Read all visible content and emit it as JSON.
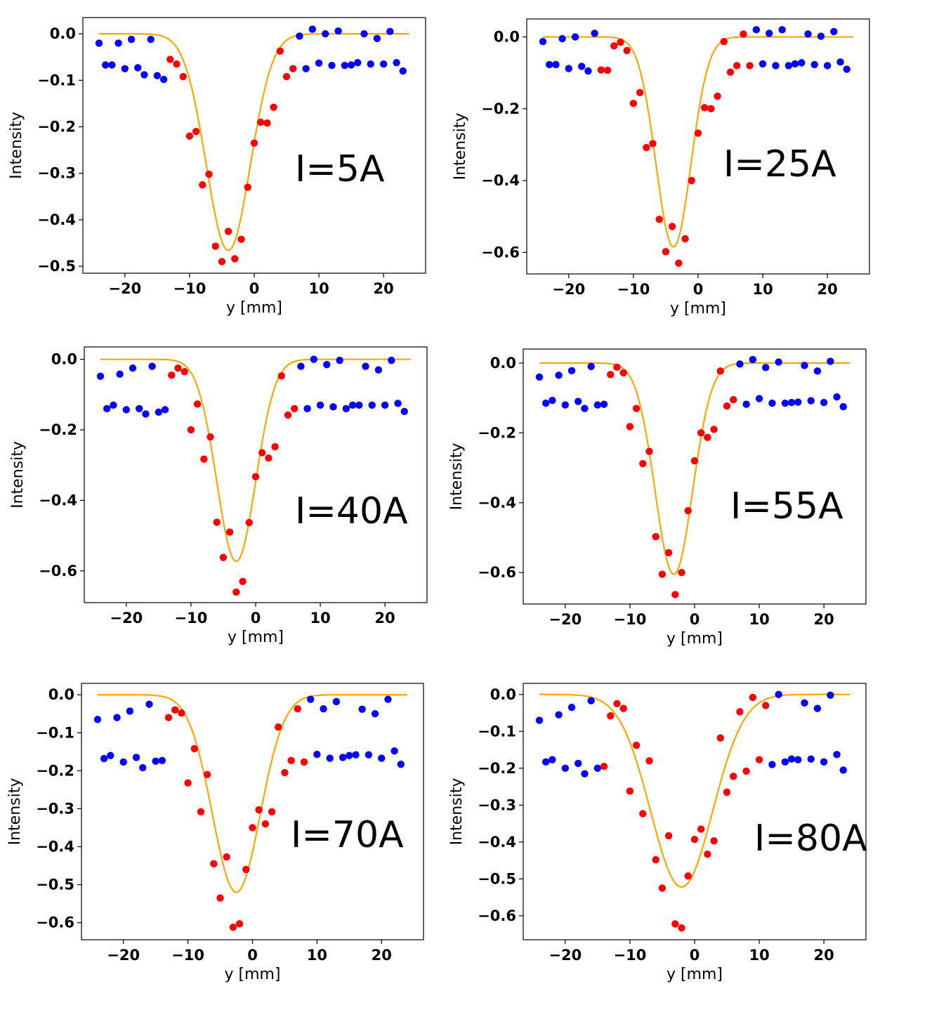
{
  "figure": {
    "fit_color": "#ffa500",
    "series_colors": {
      "outside": "#0000ff",
      "inside": "#ff0000"
    }
  },
  "chart_data": [
    {
      "type": "scatter",
      "annotation": "I=5A",
      "xlabel": "y [mm]",
      "ylabel": "Intensity",
      "xlim": [
        -26.5,
        26.5
      ],
      "ylim": [
        -0.515,
        0.035
      ],
      "xticks": [
        -20,
        -10,
        0,
        10,
        20
      ],
      "xtick_labels": [
        "−20",
        "−10",
        "0",
        "10",
        "20"
      ],
      "yticks": [
        0.0,
        -0.1,
        -0.2,
        -0.3,
        -0.4,
        -0.5
      ],
      "ytick_labels": [
        "0.0",
        "−0.1",
        "−0.2",
        "−0.3",
        "−0.4",
        "−0.5"
      ],
      "fit": {
        "amplitude": -0.466,
        "center": -4.0,
        "sigma": 3.4
      },
      "series": [
        {
          "color": "blue",
          "x": [
            -24,
            -23,
            -22,
            -21,
            -20,
            -19,
            -18,
            -17,
            -16,
            -15,
            -14
          ],
          "y": [
            -0.02,
            -0.067,
            -0.067,
            -0.02,
            -0.075,
            -0.012,
            -0.073,
            -0.088,
            -0.012,
            -0.09,
            -0.098
          ]
        },
        {
          "color": "blue",
          "x": [
            7,
            8,
            9,
            10,
            11,
            12,
            13,
            14,
            15,
            16,
            17,
            18,
            19,
            20,
            21,
            22,
            23
          ],
          "y": [
            -0.005,
            -0.075,
            0.01,
            -0.063,
            0.0,
            -0.068,
            0.006,
            -0.068,
            -0.067,
            -0.062,
            0.0,
            -0.065,
            -0.01,
            -0.065,
            0.005,
            -0.062,
            -0.08
          ]
        },
        {
          "color": "red",
          "x": [
            -13,
            -12,
            -11,
            -10,
            -9,
            -8,
            -7,
            -6,
            -5,
            -4,
            -3,
            -2,
            -1,
            0,
            1,
            2,
            3,
            4,
            5,
            6
          ],
          "y": [
            -0.055,
            -0.065,
            -0.092,
            -0.22,
            -0.21,
            -0.325,
            -0.302,
            -0.457,
            -0.49,
            -0.425,
            -0.484,
            -0.442,
            -0.33,
            -0.235,
            -0.19,
            -0.192,
            -0.158,
            -0.037,
            -0.092,
            -0.075
          ]
        }
      ]
    },
    {
      "type": "scatter",
      "annotation": "I=25A",
      "xlabel": "y [mm]",
      "ylabel": "Intensity",
      "xlim": [
        -26.5,
        26.5
      ],
      "ylim": [
        -0.66,
        0.05
      ],
      "xticks": [
        -20,
        -10,
        0,
        10,
        20
      ],
      "xtick_labels": [
        "−20",
        "−10",
        "0",
        "10",
        "20"
      ],
      "yticks": [
        0.0,
        -0.2,
        -0.4,
        -0.6
      ],
      "ytick_labels": [
        "0.0",
        "−0.2",
        "−0.4",
        "−0.6"
      ],
      "fit": {
        "amplitude": -0.585,
        "center": -3.8,
        "sigma": 2.7
      },
      "series": [
        {
          "color": "blue",
          "x": [
            -24,
            -23,
            -22,
            -21,
            -20,
            -19,
            -18,
            -17,
            -16
          ],
          "y": [
            -0.013,
            -0.077,
            -0.077,
            -0.005,
            -0.088,
            0.0,
            -0.082,
            -0.095,
            0.01
          ]
        },
        {
          "color": "blue",
          "x": [
            9,
            10,
            11,
            12,
            13,
            14,
            15,
            16,
            17,
            18,
            19,
            20,
            21,
            22,
            23
          ],
          "y": [
            0.02,
            -0.075,
            0.01,
            -0.08,
            0.02,
            -0.08,
            -0.075,
            -0.072,
            0.008,
            -0.077,
            0.002,
            -0.08,
            0.015,
            -0.07,
            -0.09
          ]
        },
        {
          "color": "red",
          "x": [
            -15,
            -14,
            -13,
            -12,
            -11,
            -10,
            -9,
            -8,
            -7,
            -6,
            -5,
            -4,
            -3,
            -2,
            -1,
            0,
            1,
            2,
            3,
            4,
            5,
            6,
            7,
            8
          ],
          "y": [
            -0.092,
            -0.093,
            -0.025,
            -0.015,
            -0.038,
            -0.185,
            -0.155,
            -0.308,
            -0.297,
            -0.508,
            -0.598,
            -0.528,
            -0.63,
            -0.562,
            -0.4,
            -0.268,
            -0.197,
            -0.2,
            -0.165,
            -0.013,
            -0.098,
            -0.08,
            0.008,
            -0.08
          ]
        }
      ]
    },
    {
      "type": "scatter",
      "annotation": "I=40A",
      "xlabel": "y [mm]",
      "ylabel": "Intensity",
      "xlim": [
        -26.5,
        26.5
      ],
      "ylim": [
        -0.69,
        0.035
      ],
      "xticks": [
        -20,
        -10,
        0,
        10,
        20
      ],
      "xtick_labels": [
        "−20",
        "−10",
        "0",
        "10",
        "20"
      ],
      "yticks": [
        0.0,
        -0.2,
        -0.4,
        -0.6
      ],
      "ytick_labels": [
        "0.0",
        "−0.2",
        "−0.4",
        "−0.6"
      ],
      "fit": {
        "amplitude": -0.573,
        "center": -3.0,
        "sigma": 3.0
      },
      "series": [
        {
          "color": "blue",
          "x": [
            -24,
            -23,
            -22,
            -21,
            -20,
            -19,
            -18,
            -17,
            -16,
            -15,
            -14
          ],
          "y": [
            -0.048,
            -0.14,
            -0.13,
            -0.042,
            -0.143,
            -0.025,
            -0.14,
            -0.155,
            -0.02,
            -0.15,
            -0.143
          ]
        },
        {
          "color": "blue",
          "x": [
            7,
            8,
            9,
            10,
            11,
            12,
            13,
            14,
            15,
            16,
            17,
            18,
            19,
            20,
            21,
            22,
            23
          ],
          "y": [
            -0.02,
            -0.14,
            0.0,
            -0.13,
            -0.015,
            -0.135,
            -0.003,
            -0.14,
            -0.13,
            -0.13,
            -0.02,
            -0.13,
            -0.03,
            -0.13,
            -0.003,
            -0.125,
            -0.148
          ]
        },
        {
          "color": "red",
          "x": [
            -13,
            -12,
            -11,
            -10,
            -9,
            -8,
            -7,
            -6,
            -5,
            -4,
            -3,
            -2,
            -1,
            0,
            1,
            2,
            3,
            4,
            5,
            6
          ],
          "y": [
            -0.045,
            -0.025,
            -0.035,
            -0.2,
            -0.127,
            -0.283,
            -0.22,
            -0.462,
            -0.562,
            -0.49,
            -0.66,
            -0.63,
            -0.463,
            -0.333,
            -0.265,
            -0.28,
            -0.248,
            -0.047,
            -0.158,
            -0.14
          ]
        }
      ]
    },
    {
      "type": "scatter",
      "annotation": "I=55A",
      "xlabel": "y [mm]",
      "ylabel": "Intensity",
      "xlim": [
        -26.5,
        26.5
      ],
      "ylim": [
        -0.69,
        0.04
      ],
      "xticks": [
        -20,
        -10,
        0,
        10,
        20
      ],
      "xtick_labels": [
        "−20",
        "−10",
        "0",
        "10",
        "20"
      ],
      "yticks": [
        0.0,
        -0.2,
        -0.4,
        -0.6
      ],
      "ytick_labels": [
        "0.0",
        "−0.2",
        "−0.4",
        "−0.6"
      ],
      "fit": {
        "amplitude": -0.605,
        "center": -3.2,
        "sigma": 2.9
      },
      "series": [
        {
          "color": "blue",
          "x": [
            -24,
            -23,
            -22,
            -21,
            -20,
            -19,
            -18,
            -17,
            -16,
            -15,
            -14
          ],
          "y": [
            -0.04,
            -0.115,
            -0.107,
            -0.035,
            -0.12,
            -0.022,
            -0.11,
            -0.13,
            -0.01,
            -0.12,
            -0.118
          ]
        },
        {
          "color": "blue",
          "x": [
            7,
            8,
            9,
            10,
            11,
            12,
            13,
            14,
            15,
            16,
            17,
            18,
            19,
            20,
            21,
            22,
            23
          ],
          "y": [
            -0.003,
            -0.118,
            0.01,
            -0.102,
            -0.013,
            -0.115,
            0.003,
            -0.115,
            -0.113,
            -0.112,
            -0.007,
            -0.108,
            -0.023,
            -0.113,
            0.005,
            -0.097,
            -0.125
          ]
        },
        {
          "color": "red",
          "x": [
            -13,
            -12,
            -11,
            -10,
            -9,
            -8,
            -7,
            -6,
            -5,
            -4,
            -3,
            -2,
            -1,
            0,
            1,
            2,
            3,
            4,
            5,
            6
          ],
          "y": [
            -0.033,
            -0.012,
            -0.028,
            -0.182,
            -0.13,
            -0.288,
            -0.253,
            -0.497,
            -0.605,
            -0.543,
            -0.663,
            -0.6,
            -0.423,
            -0.28,
            -0.2,
            -0.213,
            -0.19,
            -0.023,
            -0.123,
            -0.105
          ]
        }
      ]
    },
    {
      "type": "scatter",
      "annotation": "I=70A",
      "xlabel": "y [mm]",
      "ylabel": "Intensity",
      "xlim": [
        -26.5,
        26.5
      ],
      "ylim": [
        -0.645,
        0.03
      ],
      "xticks": [
        -20,
        -10,
        0,
        10,
        20
      ],
      "xtick_labels": [
        "−20",
        "−10",
        "0",
        "10",
        "20"
      ],
      "yticks": [
        0.0,
        -0.1,
        -0.2,
        -0.3,
        -0.4,
        -0.5,
        -0.6
      ],
      "ytick_labels": [
        "0.0",
        "−0.1",
        "−0.2",
        "−0.3",
        "−0.4",
        "−0.5",
        "−0.6"
      ],
      "fit": {
        "amplitude": -0.52,
        "center": -2.5,
        "sigma": 3.7
      },
      "series": [
        {
          "color": "blue",
          "x": [
            -24,
            -23,
            -22,
            -21,
            -20,
            -19,
            -18,
            -17,
            -16,
            -15,
            -14
          ],
          "y": [
            -0.065,
            -0.168,
            -0.16,
            -0.06,
            -0.177,
            -0.043,
            -0.165,
            -0.192,
            -0.025,
            -0.175,
            -0.173
          ]
        },
        {
          "color": "blue",
          "x": [
            9,
            10,
            11,
            12,
            13,
            14,
            15,
            16,
            17,
            18,
            19,
            20,
            21,
            22,
            23
          ],
          "y": [
            -0.012,
            -0.157,
            -0.037,
            -0.167,
            -0.018,
            -0.165,
            -0.16,
            -0.158,
            -0.038,
            -0.158,
            -0.05,
            -0.167,
            -0.012,
            -0.148,
            -0.183
          ]
        },
        {
          "color": "red",
          "x": [
            -13,
            -12,
            -11,
            -10,
            -9,
            -8,
            -7,
            -6,
            -5,
            -4,
            -3,
            -2,
            -1,
            0,
            1,
            2,
            3,
            4,
            5,
            6,
            7,
            8
          ],
          "y": [
            -0.06,
            -0.04,
            -0.048,
            -0.232,
            -0.142,
            -0.308,
            -0.21,
            -0.445,
            -0.535,
            -0.427,
            -0.612,
            -0.603,
            -0.46,
            -0.35,
            -0.303,
            -0.34,
            -0.308,
            -0.085,
            -0.205,
            -0.173,
            -0.037,
            -0.177
          ]
        }
      ]
    },
    {
      "type": "scatter",
      "annotation": "I=80A",
      "xlabel": "y [mm]",
      "ylabel": "Intensity",
      "xlim": [
        -26.5,
        26.5
      ],
      "ylim": [
        -0.665,
        0.03
      ],
      "xticks": [
        -20,
        -10,
        0,
        10,
        20
      ],
      "xtick_labels": [
        "−20",
        "−10",
        "0",
        "10",
        "20"
      ],
      "yticks": [
        0.0,
        -0.1,
        -0.2,
        -0.3,
        -0.4,
        -0.5,
        -0.6
      ],
      "ytick_labels": [
        "0.0",
        "−0.1",
        "−0.2",
        "−0.3",
        "−0.4",
        "−0.5",
        "−0.6"
      ],
      "fit": {
        "amplitude": -0.522,
        "center": -2.0,
        "sigma": 4.8
      },
      "series": [
        {
          "color": "blue",
          "x": [
            -24,
            -23,
            -22,
            -21,
            -20,
            -19,
            -18,
            -17,
            -16,
            -15
          ],
          "y": [
            -0.07,
            -0.183,
            -0.177,
            -0.055,
            -0.2,
            -0.035,
            -0.187,
            -0.215,
            -0.017,
            -0.2
          ]
        },
        {
          "color": "blue",
          "x": [
            12,
            13,
            14,
            15,
            16,
            17,
            18,
            19,
            20,
            21,
            22,
            23
          ],
          "y": [
            -0.19,
            0.0,
            -0.183,
            -0.175,
            -0.177,
            -0.023,
            -0.175,
            -0.038,
            -0.183,
            -0.002,
            -0.163,
            -0.205
          ]
        },
        {
          "color": "red",
          "x": [
            -14,
            -13,
            -12,
            -11,
            -10,
            -9,
            -8,
            -7,
            -6,
            -5,
            -4,
            -3,
            -2,
            -1,
            0,
            1,
            2,
            3,
            4,
            5,
            6,
            7,
            8,
            9,
            10,
            11
          ],
          "y": [
            -0.195,
            -0.058,
            -0.025,
            -0.038,
            -0.262,
            -0.138,
            -0.323,
            -0.18,
            -0.448,
            -0.525,
            -0.383,
            -0.622,
            -0.633,
            -0.492,
            -0.393,
            -0.365,
            -0.433,
            -0.397,
            -0.118,
            -0.265,
            -0.222,
            -0.047,
            -0.208,
            -0.008,
            -0.177,
            -0.03
          ]
        }
      ]
    }
  ]
}
